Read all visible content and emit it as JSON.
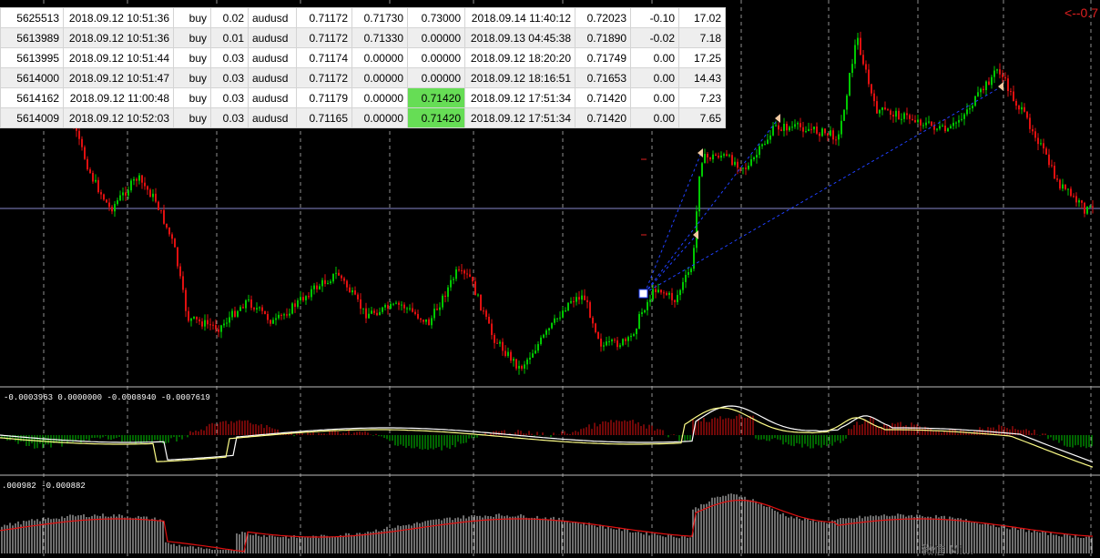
{
  "trade_table": {
    "rows": [
      [
        "5625513",
        "2018.09.12 10:51:36",
        "buy",
        "0.02",
        "audusd",
        "0.71172",
        "0.71730",
        "0.73000",
        "2018.09.14 11:40:12",
        "0.72023",
        "-0.10",
        "17.02"
      ],
      [
        "5613989",
        "2018.09.12 10:51:36",
        "buy",
        "0.01",
        "audusd",
        "0.71172",
        "0.71330",
        "0.00000",
        "2018.09.13 04:45:38",
        "0.71890",
        "-0.02",
        "7.18"
      ],
      [
        "5613995",
        "2018.09.12 10:51:44",
        "buy",
        "0.03",
        "audusd",
        "0.71174",
        "0.00000",
        "0.00000",
        "2018.09.12 18:20:20",
        "0.71749",
        "0.00",
        "17.25"
      ],
      [
        "5614000",
        "2018.09.12 10:51:47",
        "buy",
        "0.03",
        "audusd",
        "0.71172",
        "0.00000",
        "0.00000",
        "2018.09.12 18:16:51",
        "0.71653",
        "0.00",
        "14.43"
      ],
      [
        "5614162",
        "2018.09.12 11:00:48",
        "buy",
        "0.03",
        "audusd",
        "0.71179",
        "0.00000",
        "0.71420",
        "2018.09.12 17:51:34",
        "0.71420",
        "0.00",
        "7.23"
      ],
      [
        "5614009",
        "2018.09.12 10:52:03",
        "buy",
        "0.03",
        "audusd",
        "0.71165",
        "0.00000",
        "0.71420",
        "2018.09.12 17:51:34",
        "0.71420",
        "0.00",
        "7.65"
      ]
    ],
    "highlighted_cells": [
      [
        4,
        7
      ],
      [
        5,
        7
      ]
    ]
  },
  "chart": {
    "price_label": "<--0.7",
    "macd_label": "-0.0003963 0.0000000 -0.0008940 -0.0007619",
    "osma_label": ".000982 -0.000882",
    "watermark": "微信 Mi...",
    "colors": {
      "background": "#000000",
      "bull": "#00c800",
      "bear": "#e01010",
      "grid": "#cccccc",
      "trade_line": "#2040ff",
      "hline": "#8888cc",
      "signal": "#ffffff",
      "ma": "#ffff88"
    }
  }
}
